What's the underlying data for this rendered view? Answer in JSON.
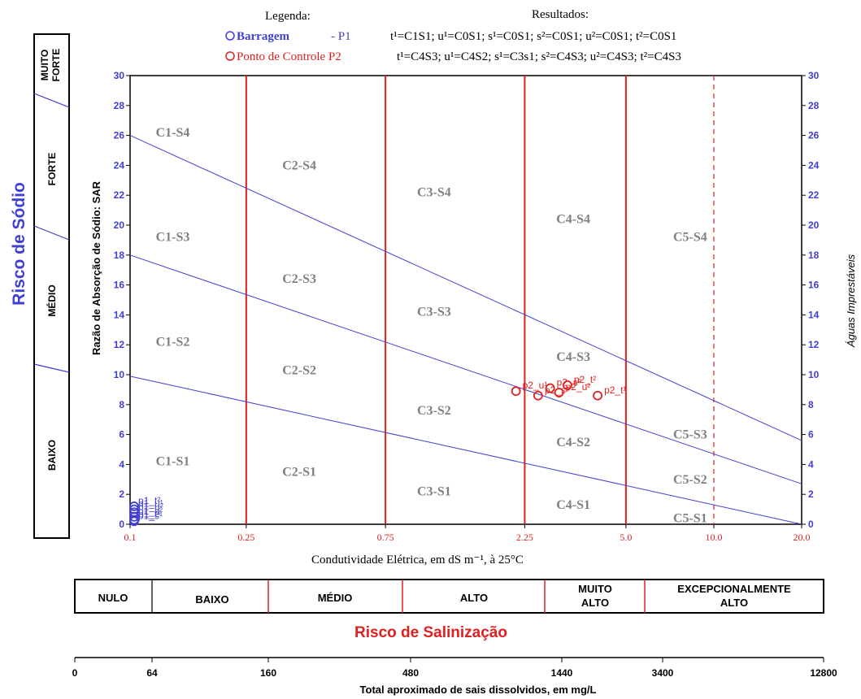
{
  "legend": {
    "title": "Legenda:",
    "barragem": "Barragem",
    "barragem_suffix": "- P1",
    "p2": "Ponto de Controle P2"
  },
  "results": {
    "title": "Resultados:",
    "p1": "t¹=C1S1; u¹=C0S1; s¹=C0S1; s²=C0S1; u²=C0S1; t²=C0S1",
    "p2": "t¹=C4S3; u¹=C4S2; s¹=C3s1; s²=C4S3; u²=C4S3; t²=C4S3"
  },
  "sodium_panel": {
    "title": "Risco de Sódio",
    "muito_forte": [
      "MUITO",
      "FORTE"
    ],
    "forte": "FORTE",
    "medio": "MÉDIO",
    "baixo": "BAIXO"
  },
  "right_label": "Águas Imprestáveis",
  "salinity_panel": {
    "title": "Risco de Salinização",
    "nulo": "NULO",
    "baixo": "BAIXO",
    "medio": "MÉDIO",
    "alto": "ALTO",
    "muito_alto": [
      "MUITO",
      "ALTO"
    ],
    "excepcional": [
      "EXCEPCIONALMENTE",
      "ALTO"
    ]
  },
  "tds_axis": {
    "ticks": [
      "0",
      "64",
      "160",
      "480",
      "1440",
      "3400",
      "12800"
    ],
    "label": "Total aproximado de sais dissolvidos, em mg/L"
  },
  "colors": {
    "blue": "#4040d0",
    "red": "#e02020",
    "gray": "#808080"
  },
  "chart_data": {
    "type": "scatter",
    "xlabel": "Condutividade Elétrica, em dS m⁻¹, à 25°C",
    "ylabel": "Razão de Absorção de Sódio:  SAR",
    "x_scale": "log",
    "xlim": [
      0.1,
      20.0
    ],
    "ylim": [
      0,
      30
    ],
    "x_ticks": [
      "0.1",
      "0.25",
      "0.75",
      "2.25",
      "5.0",
      "10.0",
      "20.0"
    ],
    "y_ticks": [
      0,
      2,
      4,
      6,
      8,
      10,
      12,
      14,
      16,
      18,
      20,
      22,
      24,
      26,
      28,
      30
    ],
    "zones": [
      "C1-S4",
      "C2-S4",
      "C3-S4",
      "C4-S4",
      "C5-S4",
      "C1-S3",
      "C2-S3",
      "C3-S3",
      "C4-S3",
      "C5-S3",
      "C1-S2",
      "C2-S2",
      "C3-S2",
      "C4-S2",
      "C5-S2",
      "C1-S1",
      "C2-S1",
      "C3-S1",
      "C4-S1",
      "C5-S1"
    ],
    "series": [
      {
        "name": "Barragem - P1",
        "labels": [
          "p1_t²",
          "p1_u²",
          "p1_s²",
          "p1_t¹",
          "p1_u¹",
          "p1_s¹"
        ],
        "x": [
          0.1,
          0.1,
          0.1,
          0.1,
          0.1,
          0.1
        ],
        "y": [
          1.2,
          0.8,
          0.5,
          0.3,
          1.0,
          0.2
        ]
      },
      {
        "name": "Ponto de Controle P2",
        "labels": [
          "p2_t¹",
          "p2_u¹",
          "p2_s¹",
          "p2_s²",
          "p2_u²",
          "p2_t²"
        ],
        "x": [
          4.0,
          2.1,
          2.5,
          2.75,
          2.95,
          3.15
        ],
        "y": [
          8.6,
          8.9,
          8.6,
          9.1,
          8.8,
          9.3
        ]
      }
    ]
  }
}
